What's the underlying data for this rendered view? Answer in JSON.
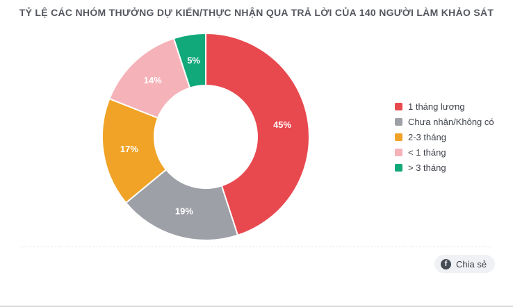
{
  "title": "TỶ LỆ CÁC NHÓM THƯỞNG DỰ KIẾN/THỰC NHẬN QUA TRẢ LỜI CỦA 140 NGƯỜI LÀM KHẢO SÁT",
  "chart_data": {
    "type": "pie",
    "subtype": "donut",
    "title": "TỶ LỆ CÁC NHÓM THƯỞNG DỰ KIẾN/THỰC NHẬN QUA TRẢ LỜI CỦA 140 NGƯỜI LÀM KHẢO SÁT",
    "unit": "%",
    "start_angle_deg": 0,
    "direction": "clockwise",
    "legend_position": "right",
    "slices": [
      {
        "label": "1 tháng lương",
        "value": 45,
        "color": "#e8494f",
        "data_label": "45%"
      },
      {
        "label": "Chưa nhận/Không có",
        "value": 19,
        "color": "#9ea0a8",
        "data_label": "19%"
      },
      {
        "label": "2-3 tháng",
        "value": 17,
        "color": "#f0a327",
        "data_label": "17%"
      },
      {
        "label": "< 1 tháng",
        "value": 14,
        "color": "#f5b2b8",
        "data_label": "14%"
      },
      {
        "label": "> 3 tháng",
        "value": 5,
        "color": "#12a97a",
        "data_label": "5%"
      }
    ],
    "slice_border_color": "#ffffff"
  },
  "footer": {
    "share_label": "Chia sẻ",
    "facebook_icon_glyph": "f"
  },
  "colors": {
    "title_text": "#55575f",
    "legend_text": "#3f434b",
    "share_button_bg": "#f0f1f4",
    "share_button_text": "#3d4149",
    "facebook_icon_bg": "#454c55"
  }
}
